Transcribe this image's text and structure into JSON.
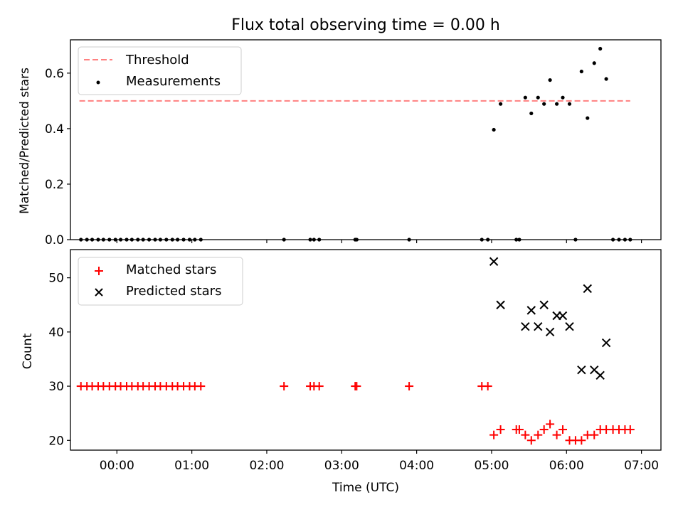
{
  "chart_data": [
    {
      "type": "scatter",
      "title": "Flux total observing time = 0.00 h",
      "xlabel": "",
      "ylabel": "Matched/Predicted stars",
      "xlim": [
        -0.62,
        7.26
      ],
      "ylim": [
        0,
        0.72
      ],
      "yticks": [
        0.0,
        0.2,
        0.4,
        0.6
      ],
      "ytick_labels": [
        "0.0",
        "0.2",
        "0.4",
        "0.6"
      ],
      "grid": false,
      "legend_position": "upper-left",
      "series": [
        {
          "name": "Threshold",
          "kind": "dashed-line",
          "color": "#ff8080",
          "x": [
            -0.5,
            6.85
          ],
          "y": [
            0.5,
            0.5
          ]
        },
        {
          "name": "Measurements",
          "kind": "points",
          "color": "#000000",
          "x": [
            -0.48,
            -0.4,
            -0.33,
            -0.25,
            -0.18,
            -0.1,
            -0.02,
            0.05,
            0.13,
            0.2,
            0.28,
            0.35,
            0.43,
            0.51,
            0.58,
            0.66,
            0.74,
            0.81,
            0.89,
            0.97,
            1.04,
            1.12,
            2.23,
            2.58,
            2.63,
            2.7,
            3.18,
            3.2,
            3.9,
            4.87,
            4.95,
            5.03,
            5.12,
            5.33,
            5.37,
            5.45,
            5.53,
            5.62,
            5.7,
            5.78,
            5.87,
            5.95,
            6.04,
            6.12,
            6.2,
            6.28,
            6.37,
            6.45,
            6.53,
            6.62,
            6.7,
            6.78,
            6.85
          ],
          "y": [
            0,
            0,
            0,
            0,
            0,
            0,
            0,
            0,
            0,
            0,
            0,
            0,
            0,
            0,
            0,
            0,
            0,
            0,
            0,
            0,
            0,
            0,
            0,
            0,
            0,
            0,
            0,
            0,
            0,
            0,
            0,
            0.396,
            0.489,
            0,
            0,
            0.512,
            0.455,
            0.512,
            0.489,
            0.575,
            0.489,
            0.512,
            0.489,
            0,
            0.606,
            0.438,
            0.636,
            0.688,
            0.579,
            0,
            0,
            0,
            0
          ]
        }
      ]
    },
    {
      "type": "scatter",
      "title": "",
      "xlabel": "Time (UTC)",
      "ylabel": "Count",
      "xlim": [
        -0.62,
        7.26
      ],
      "ylim": [
        18.2,
        55.2
      ],
      "yticks": [
        20,
        30,
        40,
        50
      ],
      "ytick_labels": [
        "20",
        "30",
        "40",
        "50"
      ],
      "xticks": [
        0,
        1,
        2,
        3,
        4,
        5,
        6,
        7
      ],
      "xtick_labels": [
        "00:00",
        "01:00",
        "02:00",
        "03:00",
        "04:00",
        "05:00",
        "06:00",
        "07:00"
      ],
      "grid": false,
      "legend_position": "upper-left",
      "series": [
        {
          "name": "Matched stars",
          "marker": "+",
          "color": "#ff0000",
          "x": [
            -0.48,
            -0.4,
            -0.33,
            -0.25,
            -0.18,
            -0.1,
            -0.02,
            0.05,
            0.13,
            0.2,
            0.28,
            0.35,
            0.43,
            0.51,
            0.58,
            0.66,
            0.74,
            0.81,
            0.89,
            0.97,
            1.04,
            1.12,
            2.23,
            2.58,
            2.63,
            2.7,
            3.18,
            3.2,
            3.9,
            4.87,
            4.95,
            5.03,
            5.12,
            5.33,
            5.37,
            5.45,
            5.53,
            5.62,
            5.7,
            5.78,
            5.87,
            5.95,
            6.04,
            6.12,
            6.2,
            6.28,
            6.37,
            6.45,
            6.53,
            6.62,
            6.7,
            6.78,
            6.85
          ],
          "y": [
            30,
            30,
            30,
            30,
            30,
            30,
            30,
            30,
            30,
            30,
            30,
            30,
            30,
            30,
            30,
            30,
            30,
            30,
            30,
            30,
            30,
            30,
            30,
            30,
            30,
            30,
            30,
            30,
            30,
            30,
            30,
            21,
            22,
            22,
            22,
            21,
            20,
            21,
            22,
            23,
            21,
            22,
            20,
            20,
            20,
            21,
            21,
            22,
            22,
            22,
            22,
            22,
            22
          ]
        },
        {
          "name": "Predicted stars",
          "marker": "x",
          "color": "#000000",
          "x": [
            5.03,
            5.12,
            5.45,
            5.53,
            5.62,
            5.7,
            5.78,
            5.87,
            5.95,
            6.04,
            6.2,
            6.28,
            6.37,
            6.45,
            6.53
          ],
          "y": [
            53,
            45,
            41,
            44,
            41,
            45,
            40,
            43,
            43,
            41,
            33,
            48,
            33,
            32,
            38
          ]
        }
      ]
    }
  ]
}
